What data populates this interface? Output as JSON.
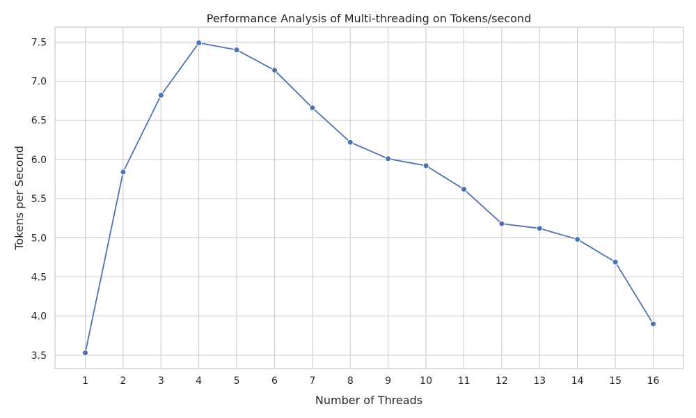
{
  "chart_data": {
    "type": "line",
    "title": "Performance Analysis of Multi-threading on Tokens/second",
    "xlabel": "Number of Threads",
    "ylabel": "Tokens per Second",
    "x": [
      1,
      2,
      3,
      4,
      5,
      6,
      7,
      8,
      9,
      10,
      11,
      12,
      13,
      14,
      15,
      16
    ],
    "series": [
      {
        "values": [
          3.53,
          5.84,
          6.82,
          7.49,
          7.4,
          7.14,
          6.66,
          6.22,
          6.01,
          5.92,
          5.62,
          5.18,
          5.12,
          4.98,
          4.69,
          3.9
        ],
        "color": "#4c72b0",
        "marker": "circle"
      }
    ],
    "xlim": [
      0.2,
      16.8
    ],
    "ylim": [
      3.33,
      7.69
    ],
    "x_ticks": [
      "1",
      "2",
      "3",
      "4",
      "5",
      "6",
      "7",
      "8",
      "9",
      "10",
      "11",
      "12",
      "13",
      "14",
      "15",
      "16"
    ],
    "y_ticks": [
      "3.5",
      "4.0",
      "4.5",
      "5.0",
      "5.5",
      "6.0",
      "6.5",
      "7.0",
      "7.5"
    ],
    "grid": true,
    "legend": "none"
  }
}
